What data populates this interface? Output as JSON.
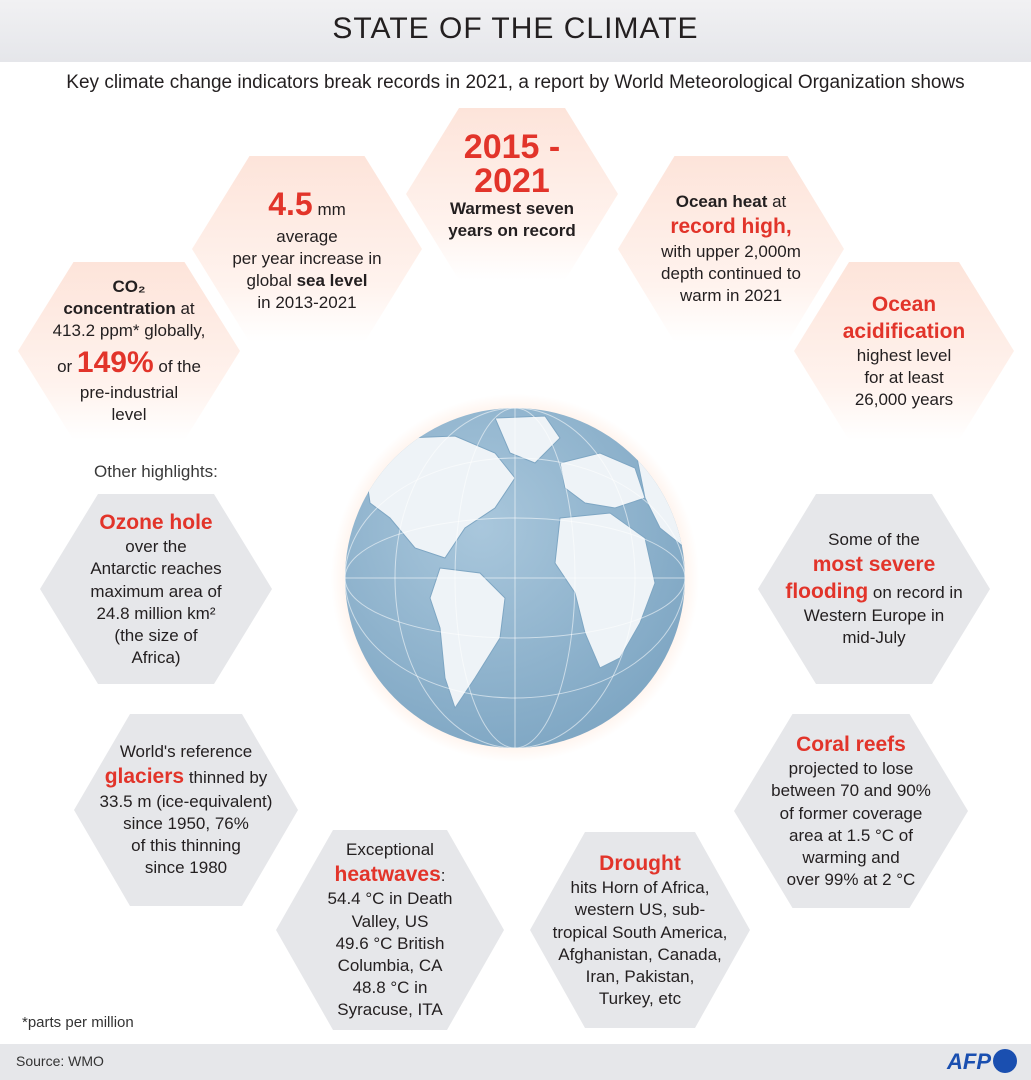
{
  "header": {
    "title": "STATE OF THE CLIMATE",
    "subtitle": "Key climate change indicators break records in 2021, a report by World Meteorological Organization shows"
  },
  "indicators": {
    "co2": {
      "line1": "CO₂",
      "line2": "concentration",
      "line2_rest": " at",
      "line3": "413.2 ppm* globally,",
      "or": "or ",
      "percent": "149%",
      "percent_rest": " of the",
      "line5": "pre-industrial",
      "line6": "level"
    },
    "sea_level": {
      "value": "4.5",
      "unit": " mm",
      "line2": "average",
      "line3": "per year increase in",
      "line4a": "global ",
      "line4b": "sea level",
      "line5": "in 2013-2021"
    },
    "warmest": {
      "years_a": "2015 -",
      "years_b": "2021",
      "line1": "Warmest seven",
      "line2": "years on record"
    },
    "ocean_heat": {
      "line1a": "Ocean heat",
      "line1b": " at",
      "line2": "record high,",
      "line3": "with upper 2,000m",
      "line4": "depth continued to",
      "line5": "warm in 2021"
    },
    "acidification": {
      "line1": "Ocean",
      "line2": "acidification",
      "line3": "highest level",
      "line4": "for at least",
      "line5": "26,000 years"
    }
  },
  "other_label": "Other highlights:",
  "highlights": {
    "ozone": {
      "title": "Ozone hole",
      "line1": "over the",
      "line2": "Antarctic reaches",
      "line3": "maximum area of",
      "line4": "24.8 million km²",
      "line5": "(the size of",
      "line6": "Africa)"
    },
    "flooding": {
      "line1": "Some of the",
      "title1": "most severe",
      "title2": "flooding",
      "rest": " on record in",
      "line4": "Western Europe in",
      "line5": "mid-July"
    },
    "glaciers": {
      "line1": "World's reference",
      "title": "glaciers",
      "rest": " thinned by",
      "line3": "33.5 m (ice-equivalent)",
      "line4": "since 1950, 76%",
      "line5": "of this thinning",
      "line6": "since 1980"
    },
    "coral": {
      "title": "Coral reefs",
      "line1": "projected to lose",
      "line2": "between 70 and 90%",
      "line3": "of former coverage",
      "line4": "area at 1.5 °C of",
      "line5": "warming and",
      "line6": "over 99% at 2 °C"
    },
    "heatwaves": {
      "line1": "Exceptional",
      "title": "heatwaves",
      "colon": ":",
      "line3": "54.4 °C in Death",
      "line4": "Valley, US",
      "line5": "49.6 °C British",
      "line6": "Columbia, CA",
      "line7": "48.8 °C in",
      "line8": "Syracuse, ITA"
    },
    "drought": {
      "title": "Drought",
      "line1": "hits Horn of Africa,",
      "line2": "western US, sub-",
      "line3": "tropical South America,",
      "line4": "Afghanistan, Canada,",
      "line5": "Iran, Pakistan,",
      "line6": "Turkey, etc"
    }
  },
  "footnote": "*parts per million",
  "footer": {
    "source": "Source: WMO",
    "logo": "AFP"
  },
  "colors": {
    "accent_red": "#e2342a",
    "hex_gray": "#e6e7ea",
    "hex_warm": "#fde4da",
    "globe_ocean": "#8fb3cd",
    "globe_land": "#eef3f7",
    "afp_blue": "#1a4fb0"
  }
}
